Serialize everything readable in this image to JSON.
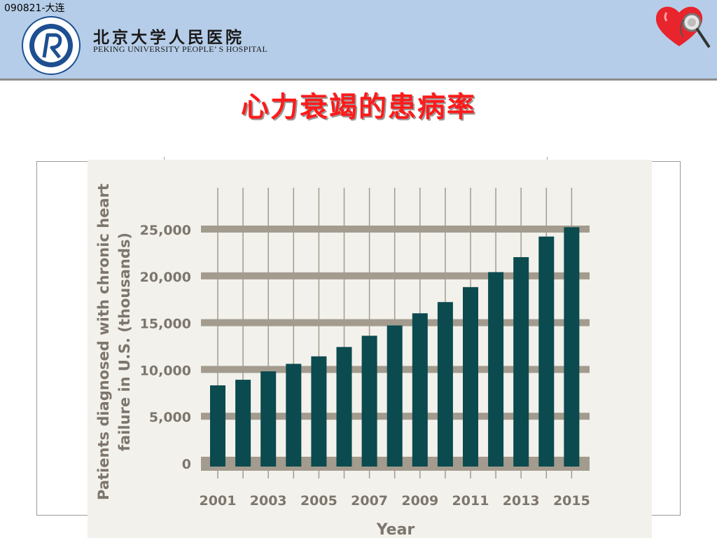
{
  "header": {
    "corner_note": "090821-大连",
    "hospital_name_cn": "北京大学人民医院",
    "hospital_name_en": "PEKING UNIVERSITY PEOPLE’ S HOSPITAL",
    "logo_icon": "hospital-seal-logo",
    "heart_icon": "heart-stethoscope-icon"
  },
  "slide": {
    "title": "心力衰竭的患病率"
  },
  "colors": {
    "header_bg": "#b5cde8",
    "title": "#ff1a1a",
    "bar": "#0b4a4e",
    "grid": "#a39b8e",
    "label": "#7d766d"
  },
  "chart_data": {
    "type": "bar",
    "title": "",
    "xlabel": "Year",
    "ylabel": "Patients diagnosed with chronic heart failure in U.S. (thousands)",
    "ylabel_lines": [
      "Patients diagnosed with chronic heart",
      "failure in U.S. (thousands)"
    ],
    "categories": [
      "2001",
      "2002",
      "2003",
      "2004",
      "2005",
      "2006",
      "2007",
      "2008",
      "2009",
      "2010",
      "2011",
      "2012",
      "2013",
      "2014",
      "2015"
    ],
    "x_tick_labels": [
      "2001",
      "2003",
      "2005",
      "2007",
      "2009",
      "2011",
      "2013",
      "2015"
    ],
    "values": [
      8300,
      8900,
      9800,
      10600,
      11400,
      12400,
      13600,
      14700,
      16000,
      17200,
      18800,
      20400,
      22000,
      24200,
      25200
    ],
    "ylim": [
      0,
      25000
    ],
    "y_ticks": [
      0,
      5000,
      10000,
      15000,
      20000,
      25000
    ],
    "y_tick_labels": [
      "0",
      "5,000",
      "10,000",
      "15,000",
      "20,000",
      "25,000"
    ],
    "grid": true,
    "legend": "none"
  }
}
